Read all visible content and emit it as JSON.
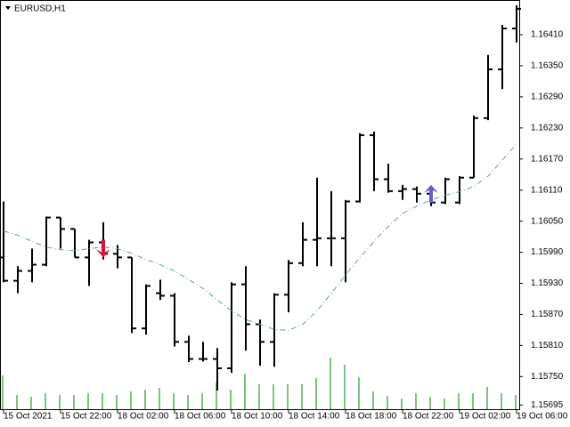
{
  "chart_data": {
    "type": "ohlc",
    "title": "EURUSD,H1",
    "categories": [
      "15 Oct 2021",
      null,
      null,
      null,
      "15 Oct 22:00",
      null,
      null,
      null,
      "18 Oct 02:00",
      null,
      null,
      null,
      "18 Oct 06:00",
      null,
      null,
      null,
      "18 Oct 10:00",
      null,
      null,
      null,
      "18 Oct 14:00",
      null,
      null,
      null,
      "18 Oct 18:00",
      null,
      null,
      null,
      "18 Oct 22:00",
      null,
      null,
      null,
      "19 Oct 02:00",
      null,
      null,
      null,
      "19 Oct 06:00"
    ],
    "open": [
      1.1598,
      1.15935,
      1.15954,
      1.15966,
      1.16057,
      1.16035,
      1.1598,
      1.16009,
      1.15987,
      1.1598,
      1.15843,
      1.15911,
      1.15906,
      1.15817,
      1.15784,
      1.15784,
      1.15766,
      1.15928,
      1.15851,
      1.15817,
      1.15908,
      1.15969,
      1.16014,
      1.16017,
      1.16017,
      1.16088,
      1.16216,
      1.16131,
      1.16108,
      1.16112,
      1.16103,
      1.16086,
      1.16086,
      1.16134,
      1.16249,
      1.16343,
      1.16422
    ],
    "high": [
      1.16088,
      1.15963,
      1.15997,
      1.16059,
      1.16057,
      1.16035,
      1.16014,
      1.16048,
      1.16004,
      1.1598,
      1.15928,
      1.15937,
      1.15911,
      1.15829,
      1.15817,
      1.15805,
      1.15932,
      1.15963,
      1.1586,
      1.15911,
      1.15975,
      1.16048,
      1.16134,
      1.16108,
      1.16091,
      1.1622,
      1.16223,
      1.16161,
      1.1612,
      1.16117,
      1.16113,
      1.16134,
      1.16137,
      1.16254,
      1.16371,
      1.16429,
      1.16467
    ],
    "low": [
      1.15932,
      1.15911,
      1.15932,
      1.15963,
      1.15997,
      1.1598,
      1.15925,
      1.15976,
      1.15959,
      1.15834,
      1.15831,
      1.15898,
      1.15808,
      1.15778,
      1.15779,
      1.15723,
      1.15757,
      1.158,
      1.15771,
      1.15769,
      1.15874,
      1.15963,
      1.15963,
      1.15963,
      1.15932,
      1.16086,
      1.16108,
      1.16105,
      1.16091,
      1.16086,
      1.16079,
      1.16083,
      1.16083,
      1.16134,
      1.16245,
      1.16305,
      1.16395
    ],
    "close": [
      1.15935,
      1.15954,
      1.15966,
      1.16057,
      1.16035,
      1.1598,
      1.16009,
      1.15987,
      1.1598,
      1.15843,
      1.15925,
      1.15906,
      1.15817,
      1.15784,
      1.15784,
      1.15766,
      1.15928,
      1.15851,
      1.15817,
      1.15908,
      1.15969,
      1.16014,
      1.16017,
      1.16017,
      1.16088,
      1.16216,
      1.16131,
      1.16108,
      1.16112,
      1.16103,
      1.16086,
      1.16131,
      1.16134,
      1.16249,
      1.16343,
      1.16422,
      1.1646
    ],
    "bar_color": "#000000",
    "ma": [
      1.16031,
      1.16023,
      1.16011,
      1.16,
      1.15995,
      1.15993,
      1.15997,
      1.16,
      1.15997,
      1.15988,
      1.15976,
      1.15966,
      1.15954,
      1.15937,
      1.1592,
      1.15898,
      1.15877,
      1.1586,
      1.15851,
      1.15841,
      1.15839,
      1.15851,
      1.15877,
      1.15911,
      1.15946,
      1.1598,
      1.16011,
      1.1604,
      1.16065,
      1.16079,
      1.16091,
      1.161,
      1.16107,
      1.16117,
      1.16137,
      1.16168,
      1.16199
    ],
    "ma_color": "#5f9ea0",
    "volume": [
      3800,
      1600,
      1400,
      1800,
      1600,
      1600,
      1800,
      1800,
      1600,
      2000,
      2200,
      2400,
      1800,
      1600,
      1800,
      3000,
      2200,
      4000,
      2800,
      2800,
      2800,
      2800,
      3500,
      5800,
      5000,
      3600,
      2000,
      1500,
      1200,
      1800,
      1400,
      1200,
      1800,
      1800,
      2500,
      1800,
      1600
    ],
    "volume_color": "#008000",
    "sell_arrows": [
      null,
      null,
      null,
      null,
      null,
      null,
      null,
      1.1598,
      null,
      null,
      null,
      null,
      null,
      null,
      null,
      null,
      null,
      null,
      null,
      null,
      null,
      null,
      null,
      null,
      null,
      null,
      null,
      null,
      null,
      null,
      null,
      null,
      null,
      null,
      null,
      null,
      null
    ],
    "sell_color": "#dc143c",
    "buy_arrows": [
      null,
      null,
      null,
      null,
      null,
      null,
      null,
      null,
      null,
      null,
      null,
      null,
      null,
      null,
      null,
      null,
      null,
      null,
      null,
      null,
      null,
      null,
      null,
      null,
      null,
      null,
      null,
      null,
      null,
      null,
      1.1612,
      null,
      null,
      null,
      null,
      null,
      null
    ],
    "buy_color": "#6a5acd",
    "ylim": [
      1.15687,
      1.16477
    ],
    "yticks": [
      {
        "value": 1.1641,
        "label": "1.16410"
      },
      {
        "value": 1.1635,
        "label": "1.16350"
      },
      {
        "value": 1.1629,
        "label": "1.16290"
      },
      {
        "value": 1.1623,
        "label": "1.16230"
      },
      {
        "value": 1.1617,
        "label": "1.16170"
      },
      {
        "value": 1.1611,
        "label": "1.16110"
      },
      {
        "value": 1.1605,
        "label": "1.16050"
      },
      {
        "value": 1.1599,
        "label": "1.15990"
      },
      {
        "value": 1.1593,
        "label": "1.15930"
      },
      {
        "value": 1.1587,
        "label": "1.15870"
      },
      {
        "value": 1.1581,
        "label": "1.15810"
      },
      {
        "value": 1.1575,
        "label": "1.15750"
      },
      {
        "value": 1.15695,
        "label": "1.15695"
      }
    ]
  }
}
